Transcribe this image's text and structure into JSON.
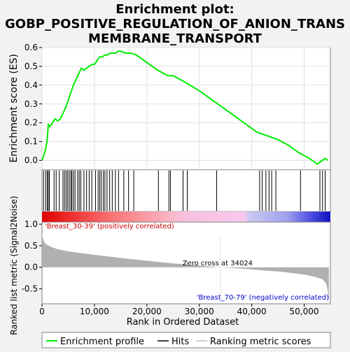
{
  "title_lines": [
    "Enrichment plot:",
    "GOBP_POSITIVE_REGULATION_OF_ANION_TRANS",
    "MEMBRANE_TRANSPORT"
  ],
  "colors": {
    "background": "#f2f2f2",
    "enrichment_line": "#00ee00",
    "hits": "#000000",
    "metric_fill": "#b0b0b0",
    "positive_label": "#cc0000",
    "negative_label": "#0000cc",
    "zero_cross_line": "#c8c8c8"
  },
  "chart_data": [
    {
      "type": "line",
      "name": "enrichment",
      "ylabel": "Enrichment score (ES)",
      "xlim": [
        0,
        55000
      ],
      "ylim": [
        -0.05,
        0.6
      ],
      "yticks": [
        0.0,
        0.1,
        0.2,
        0.3,
        0.4,
        0.5,
        0.6
      ],
      "ytick_labels": [
        "0.0",
        "0.1",
        "0.2",
        "0.3",
        "0.4",
        "0.5",
        "0.6"
      ],
      "grid": true,
      "series": [
        {
          "name": "Enrichment profile",
          "x": [
            0,
            400,
            700,
            1000,
            1200,
            1500,
            2000,
            2500,
            3000,
            3500,
            4000,
            4500,
            5000,
            5500,
            6000,
            6500,
            7000,
            7500,
            8000,
            8500,
            9000,
            9500,
            10000,
            10500,
            11000,
            11500,
            12000,
            12500,
            13000,
            13500,
            14000,
            14500,
            15000,
            16000,
            17000,
            18000,
            20000,
            22000,
            24000,
            25000,
            27000,
            30000,
            33000,
            36000,
            39000,
            41000,
            43000,
            45000,
            47000,
            49000,
            51000,
            52500,
            53000,
            53500,
            54000,
            54500
          ],
          "y": [
            0.0,
            0.03,
            0.06,
            0.11,
            0.19,
            0.18,
            0.2,
            0.22,
            0.21,
            0.22,
            0.25,
            0.28,
            0.32,
            0.36,
            0.4,
            0.43,
            0.46,
            0.49,
            0.48,
            0.49,
            0.5,
            0.51,
            0.51,
            0.53,
            0.55,
            0.55,
            0.56,
            0.56,
            0.57,
            0.57,
            0.57,
            0.58,
            0.58,
            0.57,
            0.57,
            0.56,
            0.52,
            0.48,
            0.45,
            0.45,
            0.42,
            0.37,
            0.31,
            0.25,
            0.19,
            0.15,
            0.13,
            0.11,
            0.08,
            0.04,
            0.01,
            -0.02,
            -0.01,
            0.0,
            0.01,
            0.0
          ]
        }
      ],
      "hits": [
        300,
        700,
        1000,
        1200,
        1400,
        2300,
        2700,
        3300,
        4000,
        4300,
        4600,
        4900,
        5200,
        5500,
        5700,
        6000,
        6300,
        6800,
        7100,
        7400,
        8000,
        8500,
        9000,
        9500,
        10200,
        10700,
        11000,
        11300,
        11700,
        12000,
        12400,
        12900,
        13400,
        14000,
        14600,
        15600,
        16500,
        17500,
        22200,
        24200,
        24500,
        26900,
        27700,
        33300,
        41500,
        42000,
        42700,
        43300,
        43800,
        44600,
        49300,
        53000,
        53500,
        54000
      ]
    },
    {
      "type": "area",
      "name": "ranking metric",
      "ylabel": "Ranked list metric (Signal2Noise)",
      "xlabel": "Rank in Ordered Dataset",
      "xlim": [
        0,
        55000
      ],
      "ylim": [
        -0.85,
        1.05
      ],
      "yticks": [
        -0.5,
        0.0,
        0.5,
        1.0
      ],
      "ytick_labels": [
        "-0.5",
        "0.0",
        "0.5",
        "1.0"
      ],
      "xticks": [
        0,
        10000,
        20000,
        30000,
        40000,
        50000
      ],
      "xtick_labels": [
        "0",
        "10,000",
        "20,000",
        "30,000",
        "40,000",
        "50,000"
      ],
      "zero_cross": 34024,
      "zero_cross_label": "Zero cross at 34024",
      "positive_label": "'Breast_30-39' (positively correlated)",
      "negative_label": "'Breast_70-79' (negatively correlated)",
      "series": [
        {
          "name": "Ranking metric scores",
          "x": [
            0,
            100,
            300,
            600,
            1000,
            2000,
            3000,
            5000,
            8000,
            12000,
            16000,
            20000,
            25000,
            30000,
            34024,
            38000,
            42000,
            46000,
            50000,
            52000,
            53500,
            54200,
            54500,
            54700
          ],
          "y": [
            0.8,
            0.7,
            0.62,
            0.56,
            0.52,
            0.46,
            0.42,
            0.37,
            0.32,
            0.26,
            0.2,
            0.15,
            0.09,
            0.04,
            0.0,
            -0.03,
            -0.07,
            -0.11,
            -0.17,
            -0.22,
            -0.28,
            -0.38,
            -0.55,
            -0.85
          ]
        }
      ]
    }
  ],
  "legend": {
    "entries": [
      "Enrichment profile",
      "Hits",
      "Ranking metric scores"
    ]
  }
}
